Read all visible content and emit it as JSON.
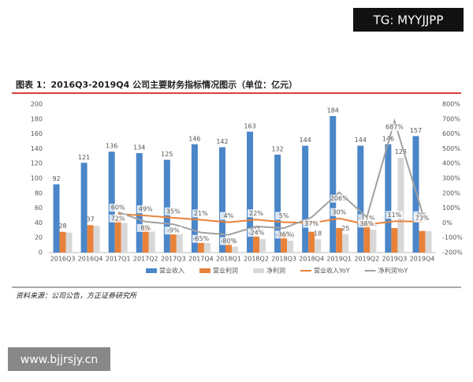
{
  "watermarks": [
    "TG: MYYJJPP",
    "www.bjjrsjy.cn"
  ],
  "chart_data": {
    "type": "bar",
    "title": "图表 1：2016Q3-2019Q4 公司主要财务指标情况图示（单位：亿元）",
    "source": "资料来源：公司公告，方正证券研究所",
    "categories": [
      "2016Q3",
      "2016Q4",
      "2017Q1",
      "2017Q2",
      "2017Q3",
      "2017Q4",
      "2018Q1",
      "2018Q2",
      "2018Q3",
      "2018Q4",
      "2019Q1",
      "2019Q2",
      "2019Q3",
      "2019Q4"
    ],
    "ylim": [
      0,
      200
    ],
    "yticks": [
      0,
      20,
      40,
      60,
      80,
      100,
      120,
      140,
      160,
      180,
      200
    ],
    "y2lim": [
      -200,
      800
    ],
    "y2ticks": [
      {
        "value": -200,
        "label": "-200%"
      },
      {
        "value": -100,
        "label": "-100%"
      },
      {
        "value": 0,
        "label": "0%"
      },
      {
        "value": 100,
        "label": "100%"
      },
      {
        "value": 200,
        "label": "200%"
      },
      {
        "value": 300,
        "label": "300%"
      },
      {
        "value": 400,
        "label": "400%"
      },
      {
        "value": 500,
        "label": "500%"
      },
      {
        "value": 600,
        "label": "600%"
      },
      {
        "value": 700,
        "label": "700%"
      },
      {
        "value": 800,
        "label": "800%"
      }
    ],
    "series": [
      {
        "name": "营业收入",
        "color": "#4a86c8",
        "values": [
          92,
          121,
          136,
          134,
          125,
          146,
          142,
          163,
          132,
          144,
          184,
          144,
          146,
          157
        ],
        "value_labels": [
          "92",
          "121",
          "136",
          "134",
          "125",
          "146",
          "142",
          "163",
          "132",
          "144",
          "184",
          "144",
          "146",
          "157"
        ]
      },
      {
        "name": "营业利润",
        "color": "#e8823a",
        "values": [
          28,
          37,
          45,
          33,
          25,
          13,
          12,
          23,
          25,
          28,
          33,
          37,
          33,
          29
        ],
        "value_labels": [
          "28",
          "37",
          null,
          null,
          null,
          null,
          null,
          "23",
          null,
          null,
          null,
          null,
          null,
          null
        ]
      },
      {
        "name": "净利润",
        "color": "#d8d8d8",
        "values": [
          27,
          36,
          40,
          30,
          25,
          13,
          8,
          18,
          16,
          18,
          25,
          31,
          128,
          29
        ],
        "value_labels": [
          null,
          null,
          null,
          null,
          null,
          null,
          "8",
          null,
          "16",
          "18",
          "25",
          "31",
          "128",
          null
        ]
      },
      {
        "name": "营业收入YoY",
        "color": "#e8823a",
        "axis": "y2",
        "line": true,
        "values": [
          null,
          null,
          60,
          49,
          35,
          21,
          4,
          22,
          5,
          -1,
          30,
          -11,
          11,
          9
        ],
        "value_labels": [
          null,
          null,
          "60%",
          "49%",
          "35%",
          "21%",
          "4%",
          "22%",
          "5%",
          null,
          "30%",
          "-11%",
          "11%",
          "9%"
        ]
      },
      {
        "name": "净利润YoY",
        "color": "#a0a0a0",
        "axis": "y2",
        "line": true,
        "values": [
          null,
          null,
          72,
          8,
          -9,
          -65,
          -80,
          -24,
          -36,
          37,
          206,
          38,
          687,
          73
        ],
        "value_labels": [
          null,
          null,
          "72%",
          "8%",
          "-9%",
          "-65%",
          "-80%",
          "-24%",
          "-36%",
          "37%",
          "206%",
          "38%",
          "687%",
          "73%"
        ]
      }
    ]
  }
}
